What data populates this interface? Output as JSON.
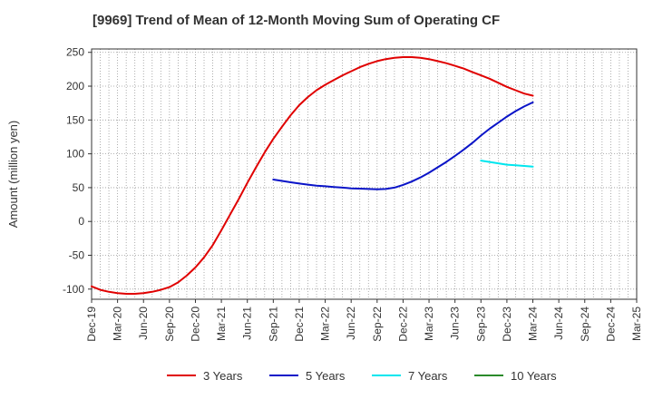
{
  "chart_data": {
    "type": "line",
    "title": "[9969]  Trend of Mean of 12-Month Moving Sum of Operating CF",
    "ylabel": "Amount (million yen)",
    "xlabel": "",
    "ylim": [
      -115,
      255
    ],
    "yticks": [
      250,
      200,
      150,
      100,
      50,
      0,
      -50,
      -100
    ],
    "xticks": [
      "Dec-19",
      "Mar-20",
      "Jun-20",
      "Sep-20",
      "Dec-20",
      "Mar-21",
      "Jun-21",
      "Sep-21",
      "Dec-21",
      "Mar-22",
      "Jun-22",
      "Sep-22",
      "Dec-22",
      "Mar-23",
      "Jun-23",
      "Sep-23",
      "Dec-23",
      "Mar-24",
      "Jun-24",
      "Sep-24",
      "Dec-24",
      "Mar-25"
    ],
    "grid": true,
    "legend_position": "bottom",
    "series": [
      {
        "name": "3 Years",
        "color": "#e00000",
        "x": [
          "Dec-19",
          "Jan-20",
          "Feb-20",
          "Mar-20",
          "Apr-20",
          "May-20",
          "Jun-20",
          "Jul-20",
          "Aug-20",
          "Sep-20",
          "Oct-20",
          "Nov-20",
          "Dec-20",
          "Jan-21",
          "Feb-21",
          "Mar-21",
          "Apr-21",
          "May-21",
          "Jun-21",
          "Jul-21",
          "Aug-21",
          "Sep-21",
          "Oct-21",
          "Nov-21",
          "Dec-21",
          "Jan-22",
          "Feb-22",
          "Mar-22",
          "Apr-22",
          "May-22",
          "Jun-22",
          "Jul-22",
          "Aug-22",
          "Sep-22",
          "Oct-22",
          "Nov-22",
          "Dec-22",
          "Jan-23",
          "Feb-23",
          "Mar-23",
          "Apr-23",
          "May-23",
          "Jun-23",
          "Jul-23",
          "Aug-23",
          "Sep-23",
          "Oct-23",
          "Nov-23",
          "Dec-23",
          "Jan-24",
          "Feb-24",
          "Mar-24"
        ],
        "values": [
          -96,
          -101,
          -104,
          -106,
          -107,
          -107,
          -106,
          -104,
          -101,
          -97,
          -90,
          -80,
          -68,
          -53,
          -35,
          -13,
          10,
          33,
          57,
          80,
          102,
          122,
          140,
          157,
          172,
          184,
          194,
          202,
          209,
          216,
          222,
          228,
          233,
          237,
          240,
          242,
          243,
          243,
          242,
          240,
          237,
          234,
          230,
          226,
          221,
          216,
          211,
          205,
          199,
          194,
          189,
          186
        ]
      },
      {
        "name": "5 Years",
        "color": "#0a14c8",
        "x": [
          "Sep-21",
          "Oct-21",
          "Nov-21",
          "Dec-21",
          "Jan-22",
          "Feb-22",
          "Mar-22",
          "Apr-22",
          "May-22",
          "Jun-22",
          "Jul-22",
          "Aug-22",
          "Sep-22",
          "Oct-22",
          "Nov-22",
          "Dec-22",
          "Jan-23",
          "Feb-23",
          "Mar-23",
          "Apr-23",
          "May-23",
          "Jun-23",
          "Jul-23",
          "Aug-23",
          "Sep-23",
          "Oct-23",
          "Nov-23",
          "Dec-23",
          "Jan-24",
          "Feb-24",
          "Mar-24"
        ],
        "values": [
          62,
          60,
          58,
          56,
          54.5,
          53,
          52,
          51,
          50,
          49,
          48.5,
          48,
          47.5,
          48,
          50,
          54,
          59,
          65,
          72,
          80,
          88,
          97,
          106,
          116,
          127,
          137,
          146,
          155,
          163,
          170,
          176
        ]
      },
      {
        "name": "7 Years",
        "color": "#00e6ee",
        "x": [
          "Sep-23",
          "Oct-23",
          "Nov-23",
          "Dec-23",
          "Jan-24",
          "Feb-24",
          "Mar-24"
        ],
        "values": [
          90,
          88,
          86,
          84,
          83,
          82,
          81
        ]
      },
      {
        "name": "10 Years",
        "color": "#2a8a2a",
        "x": [],
        "values": []
      }
    ]
  }
}
